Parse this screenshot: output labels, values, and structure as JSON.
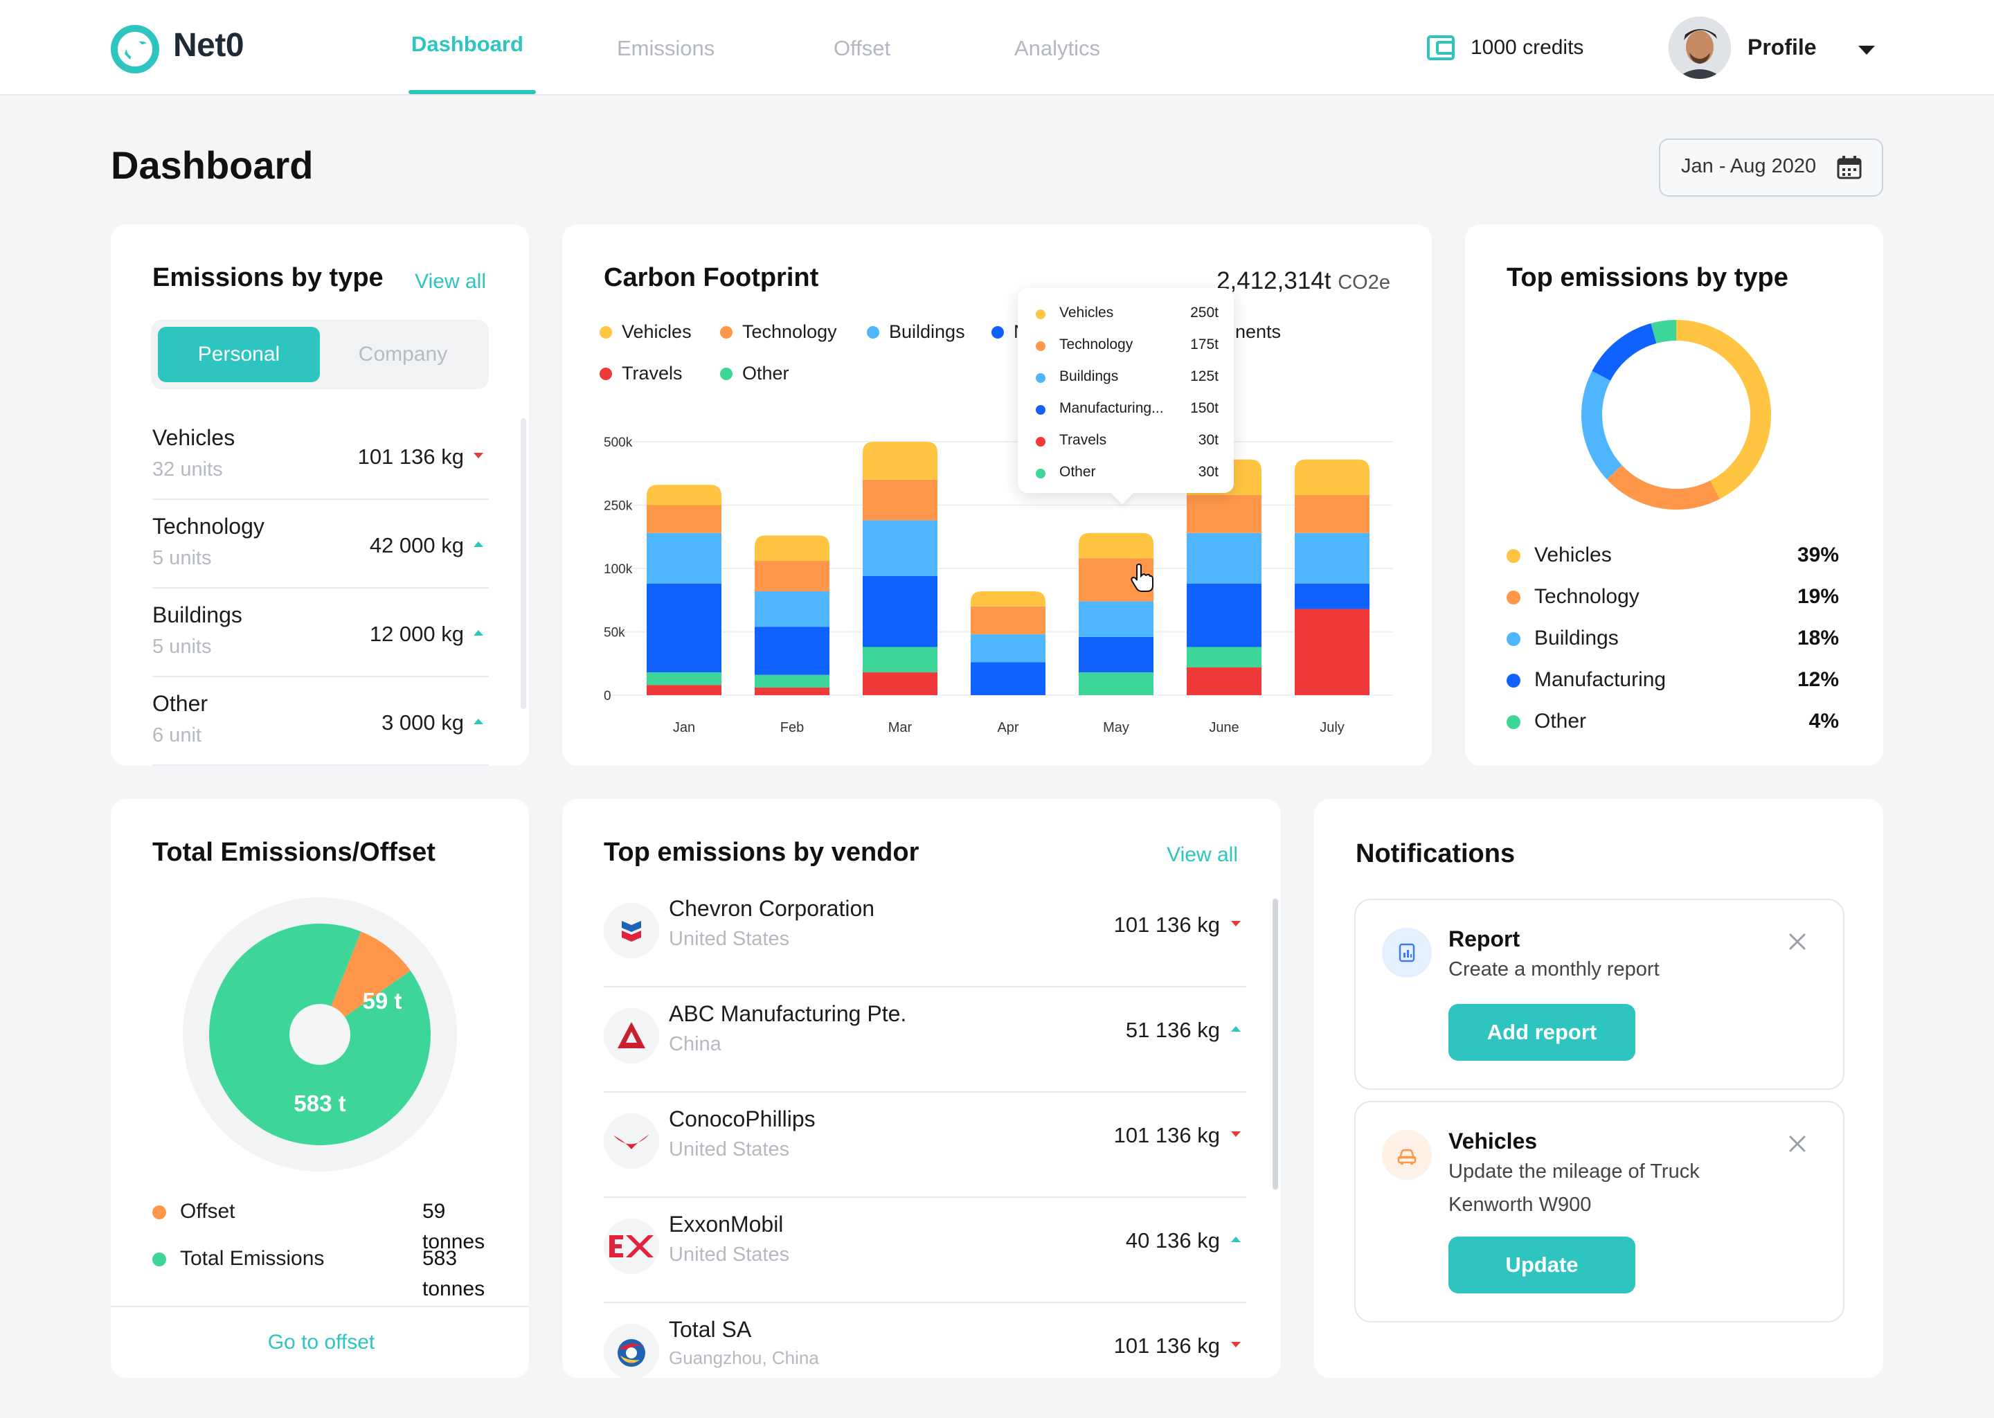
{
  "header": {
    "app_name": "Net0",
    "nav": [
      "Dashboard",
      "Emissions",
      "Offset",
      "Analytics"
    ],
    "active_tab": "Dashboard",
    "credits": "1000 credits",
    "profile": "Profile"
  },
  "page": {
    "title": "Dashboard",
    "date_range": "Jan - Aug 2020"
  },
  "emissions_by_type": {
    "title": "Emissions by type",
    "view_all": "View all",
    "toggle": [
      "Personal",
      "Company"
    ],
    "rows": [
      {
        "name": "Vehicles",
        "units": "32 units",
        "value": "101 136 kg",
        "trend": "down"
      },
      {
        "name": "Technology",
        "units": "5 units",
        "value": "42 000 kg",
        "trend": "up"
      },
      {
        "name": "Buildings",
        "units": "5 units",
        "value": "12 000 kg",
        "trend": "up"
      },
      {
        "name": "Other",
        "units": "6 unit",
        "value": "3 000 kg",
        "trend": "up"
      }
    ]
  },
  "carbon_footprint": {
    "title": "Carbon Footprint",
    "total_value": "2,412,314t",
    "total_unit": "CO2e",
    "legend": [
      "Vehicles",
      "Technology",
      "Buildings",
      "Manufacturing",
      "Travels",
      "Other"
    ],
    "legend_visible_fragments": {
      "manufacturing_prefix": "N",
      "hidden_item_suffix": "nents"
    },
    "tooltip": [
      {
        "name": "Vehicles",
        "value": "250t"
      },
      {
        "name": "Technology",
        "value": "175t"
      },
      {
        "name": "Buildings",
        "value": "125t"
      },
      {
        "name": "Manufacturing...",
        "value": "150t"
      },
      {
        "name": "Travels",
        "value": "30t"
      },
      {
        "name": "Other",
        "value": "30t"
      }
    ]
  },
  "chart_data": [
    {
      "type": "bar",
      "stacked": true,
      "title": "Carbon Footprint",
      "categories": [
        "Jan",
        "Feb",
        "Mar",
        "Apr",
        "May",
        "June",
        "July"
      ],
      "y_ticks": [
        "0",
        "50k",
        "100k",
        "250k",
        "500k"
      ],
      "grid": true,
      "series": [
        {
          "name": "Travels",
          "color": "#f03a3a",
          "values": [
            4,
            3,
            9,
            0,
            0,
            11,
            34
          ]
        },
        {
          "name": "Other",
          "color": "#3dd598",
          "values": [
            5,
            5,
            10,
            0,
            9,
            8,
            0
          ]
        },
        {
          "name": "Manufacturing",
          "color": "#0f62fe",
          "values": [
            35,
            19,
            28,
            13,
            14,
            25,
            10
          ]
        },
        {
          "name": "Buildings",
          "color": "#50b5ff",
          "values": [
            20,
            14,
            22,
            11,
            14,
            20,
            20
          ]
        },
        {
          "name": "Technology",
          "color": "#ff974a",
          "values": [
            11,
            12,
            16,
            11,
            17,
            15,
            15
          ]
        },
        {
          "name": "Vehicles",
          "color": "#ffc542",
          "values": [
            8,
            10,
            15,
            6,
            10,
            14,
            14
          ]
        }
      ]
    },
    {
      "type": "pie",
      "title": "Top emissions by type",
      "donut": true,
      "labels": [
        "Vehicles",
        "Technology",
        "Buildings",
        "Manufacturing",
        "Other"
      ],
      "values": [
        39,
        19,
        18,
        12,
        4
      ],
      "display": [
        "39%",
        "19%",
        "18%",
        "12%",
        "4%"
      ],
      "colors": [
        "#ffc542",
        "#ff974a",
        "#50b5ff",
        "#0f62fe",
        "#3dd598"
      ]
    },
    {
      "type": "pie",
      "title": "Total Emissions/Offset",
      "labels": [
        "Offset",
        "Total Emissions"
      ],
      "values": [
        59,
        583
      ],
      "slice_labels": [
        "59 t",
        "583 t"
      ],
      "display": [
        "59 tonnes",
        "583 tonnes"
      ],
      "colors": [
        "#ff974a",
        "#3dd598"
      ]
    }
  ],
  "top_emissions_by_type": {
    "title": "Top emissions by type"
  },
  "total_offset": {
    "title": "Total Emissions/Offset",
    "go_to_offset": "Go to offset"
  },
  "vendors": {
    "title": "Top emissions by vendor",
    "view_all": "View all",
    "rows": [
      {
        "name": "Chevron Corporation",
        "country": "United States",
        "value": "101 136 kg",
        "trend": "down"
      },
      {
        "name": "ABC Manufacturing Pte.",
        "country": "China",
        "value": "51 136 kg",
        "trend": "up"
      },
      {
        "name": "ConocoPhillips",
        "country": "United States",
        "value": "101 136 kg",
        "trend": "down"
      },
      {
        "name": "ExxonMobil",
        "country": "United States",
        "value": "40 136 kg",
        "trend": "up"
      },
      {
        "name": "Total SA",
        "country": "Guangzhou, China",
        "value": "101 136 kg",
        "trend": "down"
      }
    ]
  },
  "notifications": {
    "title": "Notifications",
    "items": [
      {
        "title": "Report",
        "lines": [
          "Create a monthly report"
        ],
        "button": "Add report"
      },
      {
        "title": "Vehicles",
        "lines": [
          "Update the mileage of Truck",
          "Kenworth W900"
        ],
        "button": "Update"
      }
    ]
  },
  "colors": {
    "accent": "#2ec4c0",
    "down": "#e43a3a",
    "up": "#2ec4c0"
  }
}
